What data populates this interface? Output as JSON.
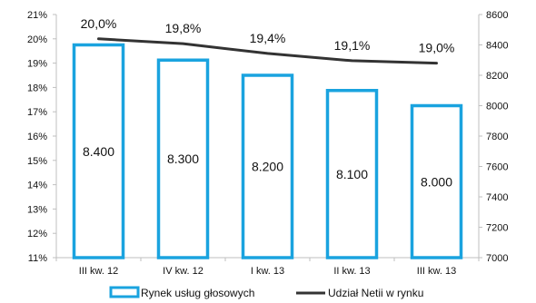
{
  "chart_data": {
    "type": "bar",
    "categories": [
      "III kw. 12",
      "IV kw. 12",
      "I kw. 13",
      "II kw. 13",
      "III kw. 13"
    ],
    "series": [
      {
        "name": "Rynek usług głosowych",
        "type": "bar",
        "axis": "right",
        "values": [
          8400,
          8300,
          8200,
          8100,
          8000
        ],
        "labels": [
          "8.400",
          "8.300",
          "8.200",
          "8.100",
          "8.000"
        ],
        "color": "#1aa3df"
      },
      {
        "name": "Udział Netii w rynku",
        "type": "line",
        "axis": "left",
        "values": [
          20.0,
          19.8,
          19.4,
          19.1,
          19.0
        ],
        "labels": [
          "20,0%",
          "19,8%",
          "19,4%",
          "19,1%",
          "19,0%"
        ],
        "color": "#333333"
      }
    ],
    "y_left": {
      "ylim": [
        11,
        21
      ],
      "ticks": [
        "11%",
        "12%",
        "13%",
        "14%",
        "15%",
        "16%",
        "17%",
        "18%",
        "19%",
        "20%",
        "21%"
      ]
    },
    "y_right": {
      "ylim": [
        7000,
        8600
      ],
      "ticks": [
        "7000",
        "7200",
        "7400",
        "7600",
        "7800",
        "8000",
        "8200",
        "8400",
        "8600"
      ]
    },
    "legend_position": "bottom",
    "grid": false
  }
}
